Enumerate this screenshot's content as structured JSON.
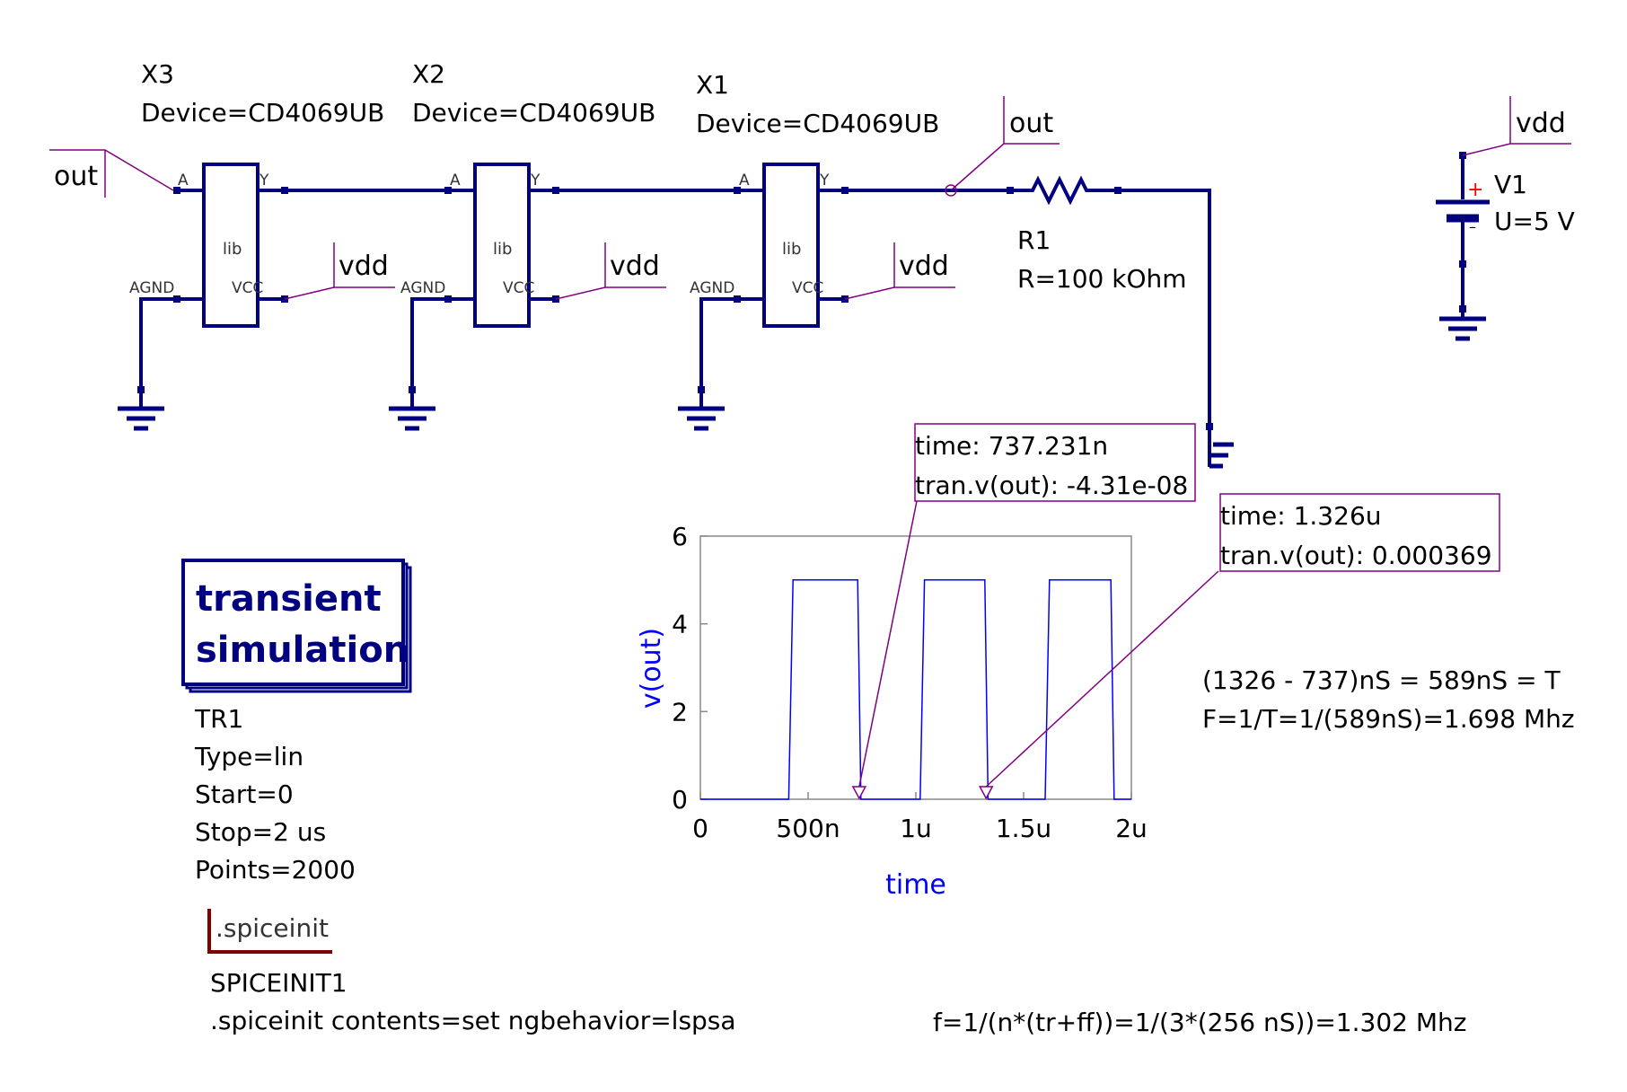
{
  "schematic": {
    "colors": {
      "wire": "#000080",
      "label": "#800080",
      "plot_line": "#0000ff",
      "axis_label": "#0000ff",
      "spice_frame": "#800000",
      "marker": "#800080",
      "text": "#000000",
      "battery_plus": "#ff0000",
      "sim_box": "#000080"
    },
    "inverters": [
      {
        "ref": "X3",
        "device": "Device=CD4069UB",
        "body": "lib",
        "pin_a": "A",
        "pin_y": "Y",
        "pin_agnd": "AGND",
        "pin_vcc": "VCC",
        "vcc_net": "vdd"
      },
      {
        "ref": "X2",
        "device": "Device=CD4069UB",
        "body": "lib",
        "pin_a": "A",
        "pin_y": "Y",
        "pin_agnd": "AGND",
        "pin_vcc": "VCC",
        "vcc_net": "vdd"
      },
      {
        "ref": "X1",
        "device": "Device=CD4069UB",
        "body": "lib",
        "pin_a": "A",
        "pin_y": "Y",
        "pin_agnd": "AGND",
        "pin_vcc": "VCC",
        "vcc_net": "vdd"
      }
    ],
    "net_labels": {
      "input": "out",
      "output": "out",
      "supply": "vdd"
    },
    "resistor": {
      "ref": "R1",
      "value": "R=100 kOhm"
    },
    "source": {
      "ref": "V1",
      "value": "U=5 V",
      "plus": "+",
      "minus": "–"
    },
    "simulation": {
      "title_line1": "transient",
      "title_line2": "simulation",
      "name": "TR1",
      "type": "Type=lin",
      "start": "Start=0",
      "stop": "Stop=2 us",
      "points": "Points=2000"
    },
    "spiceinit": {
      "title": ".spiceinit",
      "name": "SPICEINIT1",
      "contents": ".spiceinit contents=set ngbehavior=lspsa"
    },
    "markers": [
      {
        "line1": "time: 737.231n",
        "line2": "tran.v(out): -4.31e-08",
        "time": 0.737,
        "value": 0
      },
      {
        "line1": "time: 1.326u",
        "line2": "tran.v(out): 0.000369",
        "time": 1.326,
        "value": 0
      }
    ],
    "notes": {
      "period_line1": "(1326 - 737)nS = 589nS = T",
      "period_line2": "F=1/T=1/(589nS)=1.698 Mhz",
      "formula": "f=1/(n*(tr+ff))=1/(3*(256 nS))=1.302 Mhz"
    }
  },
  "chart_data": {
    "type": "line",
    "xlabel": "time",
    "ylabel": "v(out)",
    "xlim": [
      0,
      2
    ],
    "ylim": [
      0,
      6
    ],
    "x_ticks": [
      {
        "value": 0,
        "label": "0"
      },
      {
        "value": 0.5,
        "label": "500n"
      },
      {
        "value": 1,
        "label": "1u"
      },
      {
        "value": 1.5,
        "label": "1.5u"
      },
      {
        "value": 2,
        "label": "2u"
      }
    ],
    "y_ticks": [
      {
        "value": 0,
        "label": "0"
      },
      {
        "value": 2,
        "label": "2"
      },
      {
        "value": 4,
        "label": "4"
      },
      {
        "value": 6,
        "label": "6"
      }
    ],
    "grid": false,
    "series": [
      {
        "x": [
          0,
          0.41,
          0.43,
          0.73,
          0.745,
          1.02,
          1.04,
          1.32,
          1.335,
          1.6,
          1.62,
          1.905,
          1.92,
          2.0
        ],
        "y": [
          0,
          0,
          5,
          5,
          0,
          0,
          5,
          5,
          0,
          0,
          5,
          5,
          0,
          0
        ]
      }
    ]
  }
}
